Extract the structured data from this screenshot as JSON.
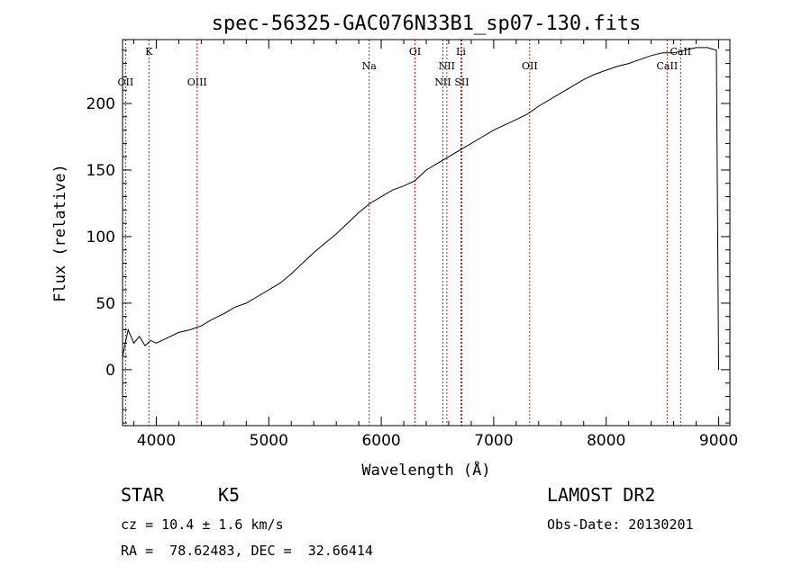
{
  "chart_data": {
    "type": "line",
    "title": "spec-56325-GAC076N33B1_sp07-130.fits",
    "xlabel": "Wavelength (Å)",
    "ylabel": "Flux (relative)",
    "xlim": [
      3700,
      9100
    ],
    "ylim": [
      -42,
      248
    ],
    "xticks": [
      4000,
      5000,
      6000,
      7000,
      8000,
      9000
    ],
    "yticks": [
      0,
      50,
      100,
      150,
      200
    ],
    "grid": false,
    "line_color": "#000000",
    "marker_color": "#a52a2a",
    "series": [
      {
        "x": [
          3700,
          3750,
          3800,
          3850,
          3900,
          3950,
          4000,
          4100,
          4200,
          4300,
          4400,
          4500,
          4600,
          4700,
          4800,
          4900,
          5000,
          5100,
          5200,
          5300,
          5400,
          5500,
          5600,
          5700,
          5800,
          5900,
          6000,
          6100,
          6200,
          6300,
          6400,
          6500,
          6560,
          6600,
          6700,
          6800,
          6900,
          7000,
          7100,
          7200,
          7300,
          7400,
          7500,
          7600,
          7700,
          7800,
          7900,
          8000,
          8100,
          8200,
          8300,
          8400,
          8500,
          8600,
          8700,
          8800,
          8900,
          8980,
          9000
        ],
        "y": [
          10,
          30,
          20,
          25,
          18,
          22,
          20,
          24,
          28,
          30,
          33,
          38,
          42,
          47,
          50,
          55,
          60,
          65,
          72,
          80,
          88,
          95,
          102,
          110,
          118,
          125,
          130,
          135,
          138,
          142,
          150,
          155,
          158,
          160,
          165,
          170,
          175,
          180,
          184,
          188,
          192,
          198,
          203,
          208,
          213,
          218,
          222,
          225,
          228,
          230,
          233,
          236,
          238,
          238,
          240,
          242,
          242,
          240,
          0
        ]
      }
    ],
    "spectral_lines": [
      {
        "label": "OII",
        "x": 3727,
        "row": "low"
      },
      {
        "label": "K",
        "x": 3934,
        "row": "high"
      },
      {
        "label": "OIII",
        "x": 4363,
        "row": "low"
      },
      {
        "label": "Na",
        "x": 5893,
        "row": "mid"
      },
      {
        "label": "OI",
        "x": 6300,
        "row": "high"
      },
      {
        "label": "NII",
        "x": 6548,
        "row": "low"
      },
      {
        "label": "NII",
        "x": 6583,
        "row": "mid"
      },
      {
        "label": "Li",
        "x": 6708,
        "row": "high"
      },
      {
        "label": "SII",
        "x": 6716,
        "row": "low"
      },
      {
        "label": "OII",
        "x": 7320,
        "row": "mid"
      },
      {
        "label": "CaII",
        "x": 8542,
        "row": "mid"
      },
      {
        "label": "CaII",
        "x": 8662,
        "row": "high"
      }
    ]
  },
  "info": {
    "object_class": "STAR",
    "subclass": "K5",
    "survey": "LAMOST DR2",
    "redshift_line": "cz = 10.4 ± 1.6 km/s",
    "obs_date_line": "Obs-Date: 20130201",
    "coords_line": "RA =  78.62483, DEC =  32.66414"
  }
}
